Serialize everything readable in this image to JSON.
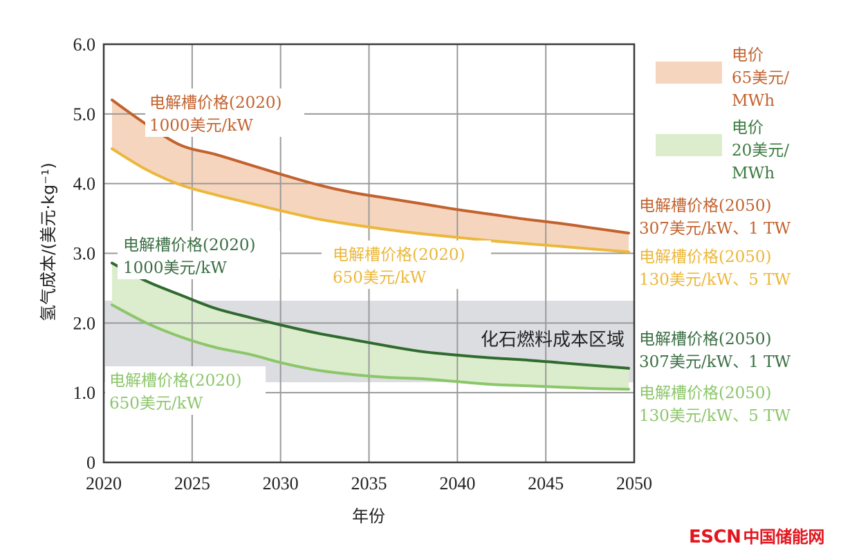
{
  "chart_data": {
    "type": "area",
    "title": "",
    "xlabel": "年份",
    "ylabel": "氢气成本/(美元·kg⁻¹)",
    "xlim": [
      2020,
      2050
    ],
    "ylim": [
      0,
      6.0
    ],
    "grid": true,
    "x_ticks": [
      2020,
      2025,
      2030,
      2035,
      2040,
      2045,
      2050
    ],
    "x_tick_labels": [
      "2020",
      "2025",
      "2030",
      "2035",
      "2040",
      "2045",
      "2050"
    ],
    "y_ticks": [
      0,
      1,
      2,
      3,
      4,
      5,
      6
    ],
    "y_tick_labels": [
      "0",
      "1.0",
      "2.0",
      "3.0",
      "4.0",
      "5.0",
      "6.0"
    ],
    "x": [
      2020,
      2022,
      2024,
      2026,
      2028,
      2030,
      2032,
      2034,
      2036,
      2038,
      2040,
      2042,
      2044,
      2046,
      2048,
      2050
    ],
    "series": [
      {
        "name": "电价65美元/MWh — 电解槽价格(2020) 1000美元/kW → (2050) 307美元/kW、1 TW",
        "color": "#c2622e",
        "values": [
          5.2,
          4.85,
          4.55,
          4.42,
          4.27,
          4.12,
          3.98,
          3.87,
          3.79,
          3.71,
          3.63,
          3.56,
          3.49,
          3.43,
          3.36,
          3.29
        ]
      },
      {
        "name": "电价65美元/MWh — 电解槽价格(2020) 650美元/kW → (2050) 130美元/kW、5 TW",
        "color": "#ecb73a",
        "values": [
          4.5,
          4.2,
          3.98,
          3.84,
          3.72,
          3.6,
          3.49,
          3.41,
          3.34,
          3.28,
          3.23,
          3.18,
          3.14,
          3.1,
          3.06,
          3.02
        ]
      },
      {
        "name": "电价20美元/MWh — 电解槽价格(2020) 1000美元/kW → (2050) 307美元/kW、1 TW",
        "color": "#2f6a2e",
        "values": [
          2.86,
          2.6,
          2.4,
          2.21,
          2.08,
          1.96,
          1.85,
          1.76,
          1.67,
          1.59,
          1.54,
          1.5,
          1.47,
          1.43,
          1.39,
          1.35
        ]
      },
      {
        "name": "电价20美元/MWh — 电解槽价格(2020) 650美元/kW → (2050) 130美元/kW、5 TW",
        "color": "#8cc66a",
        "values": [
          2.26,
          2.0,
          1.8,
          1.65,
          1.55,
          1.42,
          1.32,
          1.26,
          1.22,
          1.2,
          1.16,
          1.12,
          1.1,
          1.08,
          1.06,
          1.05
        ]
      }
    ],
    "bands": [
      {
        "name": "电价65美元/MWh",
        "upper_series": 0,
        "lower_series": 1,
        "color": "#f5d5bd"
      },
      {
        "name": "电价20美元/MWh",
        "upper_series": 2,
        "lower_series": 3,
        "color": "#dcedcd"
      }
    ],
    "reference_region": {
      "label": "化石燃料成本区域",
      "y_range": [
        1.15,
        2.32
      ],
      "color": "#dcdde0"
    },
    "legend": {
      "position": "right-top",
      "entries": [
        {
          "lines": [
            "电价",
            "65美元/",
            "MWh"
          ],
          "color": "#f5d5bd",
          "text_color": "#c2622e"
        },
        {
          "lines": [
            "电价",
            "20美元/",
            "MWh"
          ],
          "color": "#dcedcd",
          "text_color": "#3a7a3e"
        }
      ]
    },
    "annotations": [
      {
        "id": "orange-dark-2020",
        "lines": [
          "电解槽价格(2020)",
          "1000美元/kW"
        ],
        "color": "#c2622e"
      },
      {
        "id": "orange-light-2020",
        "lines": [
          "电解槽价格(2020)",
          "650美元/kW"
        ],
        "color": "#ecb73a"
      },
      {
        "id": "green-dark-2020",
        "lines": [
          "电解槽价格(2020)",
          "1000美元/kW"
        ],
        "color": "#3a6e43"
      },
      {
        "id": "green-light-2020",
        "lines": [
          "电解槽价格(2020)",
          "650美元/kW"
        ],
        "color": "#8cc66a"
      },
      {
        "id": "orange-dark-2050",
        "lines": [
          "电解槽价格(2050)",
          "307美元/kW、1 TW"
        ],
        "color": "#c2622e"
      },
      {
        "id": "orange-light-2050",
        "lines": [
          "电解槽价格(2050)",
          "130美元/kW、5 TW"
        ],
        "color": "#ecb73a"
      },
      {
        "id": "green-dark-2050",
        "lines": [
          "电解槽价格(2050)",
          "307美元/kW、1 TW"
        ],
        "color": "#3a6e43"
      },
      {
        "id": "green-light-2050",
        "lines": [
          "电解槽价格(2050)",
          "130美元/kW、5 TW"
        ],
        "color": "#8cc66a"
      }
    ]
  },
  "watermark": {
    "brand": "ESCN",
    "name": "中国储能网",
    "color": "#e3161e"
  }
}
